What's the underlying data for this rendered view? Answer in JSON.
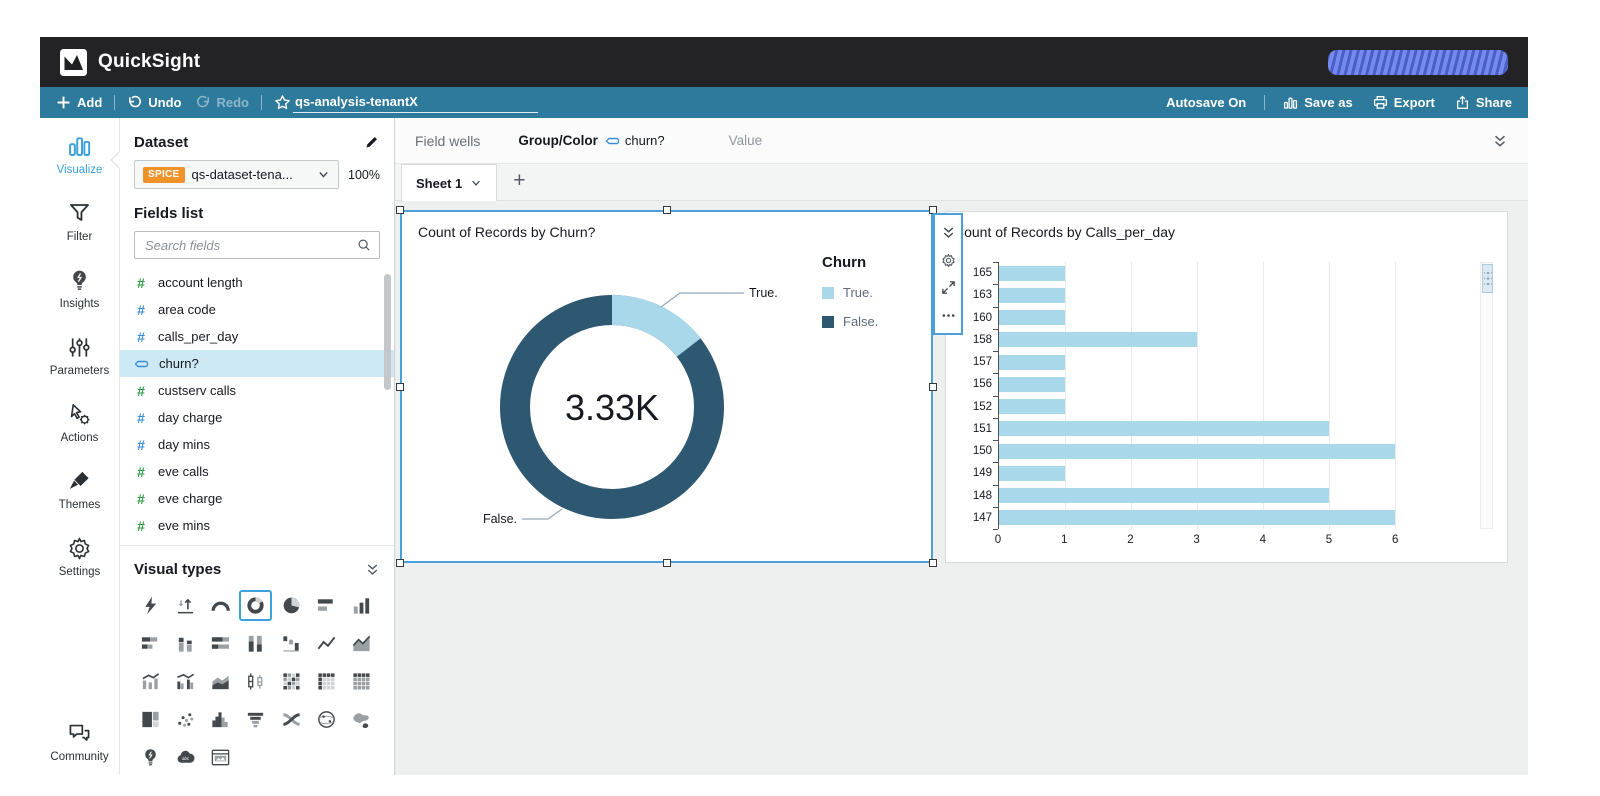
{
  "app": {
    "name": "QuickSight"
  },
  "toolbar": {
    "add": "Add",
    "undo": "Undo",
    "redo": "Redo",
    "analysis_name": "qs-analysis-tenantX",
    "autosave": "Autosave On",
    "save_as": "Save as",
    "export": "Export",
    "share": "Share"
  },
  "nav_rail": {
    "items": [
      {
        "id": "visualize",
        "label": "Visualize",
        "active": true
      },
      {
        "id": "filter",
        "label": "Filter",
        "active": false
      },
      {
        "id": "insights",
        "label": "Insights",
        "active": false
      },
      {
        "id": "parameters",
        "label": "Parameters",
        "active": false
      },
      {
        "id": "actions",
        "label": "Actions",
        "active": false
      },
      {
        "id": "themes",
        "label": "Themes",
        "active": false
      },
      {
        "id": "settings",
        "label": "Settings",
        "active": false
      },
      {
        "id": "community",
        "label": "Community",
        "active": false
      }
    ]
  },
  "dataset_panel": {
    "title": "Dataset",
    "badge": "SPICE",
    "dataset_name": "qs-dataset-tena...",
    "import_status": "100%",
    "fields_list_label": "Fields list",
    "search_placeholder": "Search fields",
    "fields": [
      {
        "name": "account length",
        "icon": "hash",
        "color": "green",
        "selected": false
      },
      {
        "name": "area code",
        "icon": "hash",
        "color": "blue",
        "selected": false
      },
      {
        "name": "calls_per_day",
        "icon": "hash",
        "color": "blue",
        "selected": false
      },
      {
        "name": "churn?",
        "icon": "dimension",
        "color": "blue",
        "selected": true
      },
      {
        "name": "custserv calls",
        "icon": "hash",
        "color": "green",
        "selected": false
      },
      {
        "name": "day charge",
        "icon": "hash",
        "color": "blue",
        "selected": false
      },
      {
        "name": "day mins",
        "icon": "hash",
        "color": "blue",
        "selected": false
      },
      {
        "name": "eve calls",
        "icon": "hash",
        "color": "green",
        "selected": false
      },
      {
        "name": "eve charge",
        "icon": "hash",
        "color": "green",
        "selected": false
      },
      {
        "name": "eve mins",
        "icon": "hash",
        "color": "green",
        "selected": false
      }
    ]
  },
  "visual_types": {
    "label": "Visual types",
    "selected": "donut-chart",
    "icons": [
      "auto-graph",
      "kpi",
      "gauge",
      "donut-chart",
      "pie-chart",
      "horizontal-bar-chart",
      "vertical-bar-chart",
      "horizontal-stacked-bar-chart",
      "vertical-stacked-bar-chart",
      "horizontal-100-stacked-bar-chart",
      "vertical-100-stacked-bar-chart",
      "waterfall-chart",
      "line-chart",
      "area-line-chart",
      "combo-bar-line-chart",
      "combo-clustered-bar-line-chart",
      "stacked-area-chart",
      "box-plot",
      "heat-map",
      "pivot-table",
      "table",
      "tree-map",
      "scatter-plot",
      "histogram",
      "funnel-chart",
      "sankey-diagram",
      "points-on-map",
      "filled-map",
      "insights",
      "word-cloud",
      "custom-visual"
    ]
  },
  "field_wells": {
    "label": "Field wells",
    "group_color_label": "Group/Color",
    "group_color_field": "churn?",
    "value_label": "Value"
  },
  "sheets": {
    "active_tab": "Sheet 1",
    "add_tab": "+"
  },
  "visual_menu": {
    "icons": [
      "double-chevron-down",
      "gear",
      "expand",
      "ellipsis"
    ]
  },
  "chart_data": [
    {
      "type": "donut",
      "title": "Count of Records by Churn?",
      "center_total": "3.33K",
      "legend_title": "Churn",
      "legend_position": "right",
      "slices": [
        {
          "label": "True.",
          "pct": 14.5,
          "color": "#a9d8ea"
        },
        {
          "label": "False.",
          "pct": 85.5,
          "color": "#2e5872"
        }
      ]
    },
    {
      "type": "bar",
      "orientation": "horizontal",
      "title": "Count of Records by Calls_per_day",
      "categories": [
        "165",
        "163",
        "160",
        "158",
        "157",
        "156",
        "152",
        "151",
        "150",
        "149",
        "148",
        "147"
      ],
      "values": [
        1,
        1,
        1,
        3,
        1,
        1,
        1,
        5,
        6,
        1,
        5,
        6
      ],
      "xlabel": "",
      "ylabel": "",
      "xlim": [
        0,
        7.1
      ],
      "x_ticks": [
        0,
        1,
        2,
        3,
        4,
        5,
        6
      ],
      "bar_color": "#a9d8ea",
      "grid": true
    }
  ],
  "colors": {
    "topbar": "#232326",
    "toolbar_blue": "#2d7a9c",
    "accent_blue": "#3aa0d9",
    "selection_blue": "#4aa1d9",
    "spice_orange": "#ef9228",
    "field_selected_bg": "#cde9f6",
    "measure_green": "#2e9e44",
    "measure_blue": "#3b8fd4",
    "redaction_blue": "#6b83ee"
  }
}
